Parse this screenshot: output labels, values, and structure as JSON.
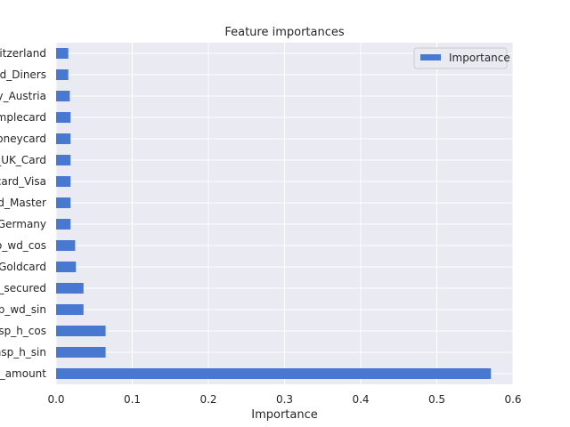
{
  "chart_data": {
    "type": "bar",
    "orientation": "horizontal",
    "title": "Feature importances",
    "xlabel": "Importance",
    "ylabel": "",
    "xlim": [
      0,
      0.6
    ],
    "x_ticks": [
      "0.0",
      "0.1",
      "0.2",
      "0.3",
      "0.4",
      "0.5",
      "0.6"
    ],
    "grid": true,
    "legend_position": "top-right",
    "categories": [
      "x_amount",
      "nsp_h_sin",
      "nsp_h_cos",
      "sp_wd_sin",
      "d_secured",
      "_Goldcard",
      "o_wd_cos",
      "_Germany",
      "rd_Master",
      "card_Visa",
      "_UK_Card",
      "Moneycard",
      "Simplecard",
      "ry_Austria",
      "rd_Diners",
      "witzerland"
    ],
    "series": [
      {
        "name": "Importance",
        "color": "#4878d0",
        "values": [
          0.571,
          0.065,
          0.065,
          0.036,
          0.036,
          0.026,
          0.025,
          0.019,
          0.019,
          0.019,
          0.019,
          0.019,
          0.019,
          0.018,
          0.016,
          0.016
        ]
      }
    ],
    "background_color": "#eaeaf2",
    "grid_color": "#ffffff"
  }
}
